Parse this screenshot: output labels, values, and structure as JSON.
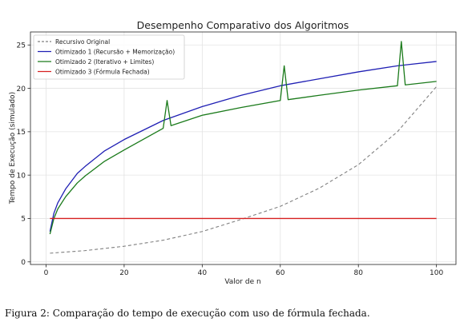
{
  "chart_data": {
    "type": "line",
    "title": "Desempenho Comparativo dos Algoritmos",
    "xlabel": "Valor de n",
    "ylabel": "Tempo de Execução (simulado)",
    "xlim": [
      -4,
      105
    ],
    "ylim": [
      -0.3,
      26.5
    ],
    "xticks": [
      0,
      20,
      40,
      60,
      80,
      100
    ],
    "yticks": [
      0,
      5,
      10,
      15,
      20,
      25
    ],
    "grid": true,
    "legend_position": "top-left",
    "series": [
      {
        "name": "Recursivo Original",
        "color": "#808080",
        "style": "dashed",
        "x": [
          1,
          10,
          20,
          30,
          40,
          50,
          60,
          70,
          80,
          90,
          100
        ],
        "y": [
          1.0,
          1.3,
          1.8,
          2.5,
          3.5,
          4.9,
          6.4,
          8.5,
          11.2,
          15.0,
          20.2
        ]
      },
      {
        "name": "Otimizado 1 (Recursão + Memorização)",
        "color": "#1f1fb4",
        "style": "solid",
        "x": [
          1,
          2,
          3,
          5,
          8,
          10,
          15,
          20,
          30,
          40,
          50,
          60,
          70,
          80,
          90,
          100
        ],
        "y": [
          3.5,
          5.6,
          6.8,
          8.4,
          10.2,
          11.0,
          12.8,
          14.1,
          16.3,
          17.9,
          19.2,
          20.3,
          21.1,
          21.9,
          22.6,
          23.1
        ]
      },
      {
        "name": "Otimizado 2 (Iterativo + Limites)",
        "color": "#1a7a1a",
        "style": "solid",
        "x": [
          1,
          2,
          3,
          5,
          8,
          10,
          15,
          20,
          30,
          31,
          32,
          40,
          50,
          60,
          61,
          62,
          70,
          80,
          90,
          91,
          92,
          100
        ],
        "y": [
          3.2,
          5.0,
          6.1,
          7.5,
          9.1,
          9.9,
          11.6,
          12.9,
          15.4,
          18.6,
          15.7,
          16.9,
          17.8,
          18.6,
          22.6,
          18.7,
          19.2,
          19.8,
          20.3,
          25.4,
          20.4,
          20.8
        ]
      },
      {
        "name": "Otimizado 3 (Fórmula Fechada)",
        "color": "#d62020",
        "style": "solid",
        "x": [
          1,
          100
        ],
        "y": [
          5,
          5
        ]
      }
    ]
  },
  "caption": "Figura 2: Comparação do tempo de execução com uso de fórmula fechada."
}
